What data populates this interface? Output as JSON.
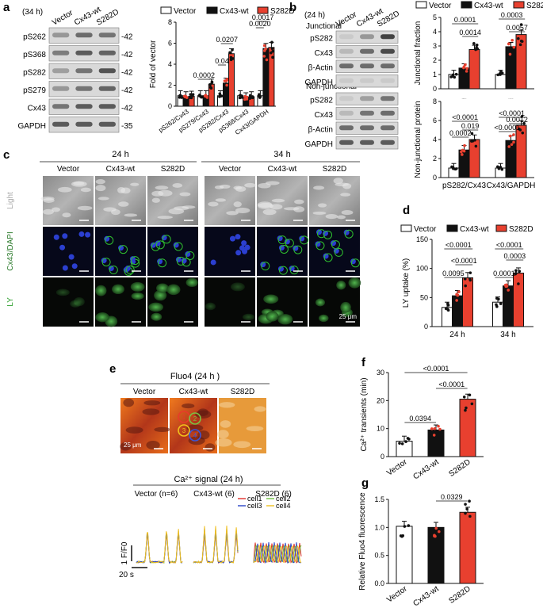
{
  "colors": {
    "vector": "#ffffff",
    "cx43wt": "#111111",
    "s282d": "#e8402f",
    "dot_red": "#e8402f",
    "blot_bg": "#d9d9d9"
  },
  "legend": [
    "Vector",
    "Cx43-wt",
    "S282D"
  ],
  "panel_a": {
    "letter": "a",
    "time": "(34 h)",
    "lanes": [
      "Vector",
      "Cx43-wt",
      "S282D"
    ],
    "bands": [
      "pS262",
      "pS368",
      "pS282",
      "pS279",
      "Cx43",
      "GAPDH"
    ],
    "kda": [
      "42",
      "42",
      "42",
      "42",
      "42",
      "35"
    ]
  },
  "panel_b": {
    "letter": "b",
    "time": "(24 h)",
    "lanes": [
      "Vector",
      "Cx43-wt",
      "S282D"
    ],
    "section1": "Junctional",
    "section2": "Non-junctional",
    "bands1": [
      "pS282",
      "Cx43",
      "β-Actin",
      "GAPDH"
    ],
    "bands2": [
      "pS282",
      "Cx43",
      "β-Actin",
      "GAPDH"
    ]
  },
  "panel_c": {
    "letter": "c",
    "time1": "24 h",
    "time2": "34 h",
    "cols": [
      "Vector",
      "Cx43-wt",
      "S282D"
    ],
    "rows": [
      "Light",
      "Cx43/DAPI",
      "LY"
    ],
    "scale": "25 μm"
  },
  "panel_e": {
    "letter": "e",
    "title": "Fluo4 (24 h )",
    "cols": [
      "Vector",
      "Cx43-wt",
      "S282D"
    ],
    "scale": "25 μm",
    "rois": [
      "1",
      "2",
      "3",
      "4"
    ],
    "signal_title": "Ca²⁺ signal (24 h)",
    "signal_cols": [
      "Vector (n=6)",
      "Cx43-wt (6)",
      "S282D (6)"
    ],
    "cells": [
      "cell1",
      "cell2",
      "cell3",
      "cell4"
    ],
    "ylabel": "1 F/F0",
    "xscale": "20 s"
  },
  "chart_data": [
    {
      "id": "a",
      "type": "bar",
      "title": "",
      "ylabel": "Fold of vector",
      "ylim": [
        0,
        8
      ],
      "yticks": [
        "0",
        "2",
        "4",
        "6",
        "8"
      ],
      "categories": [
        "pS262/Cx43",
        "pS279/Cx43",
        "pS282/Cx43",
        "pS368/Cx43",
        "Cx43/GAPDH"
      ],
      "series": [
        {
          "name": "Vector",
          "values": [
            1.0,
            1.0,
            1.0,
            1.0,
            1.0
          ]
        },
        {
          "name": "Cx43-wt",
          "values": [
            0.9,
            1.0,
            2.2,
            0.8,
            5.5
          ]
        },
        {
          "name": "S282D",
          "values": [
            0.95,
            2.1,
            5.0,
            0.9,
            5.6
          ]
        }
      ],
      "pvalues": [
        "0.0002",
        "0.04",
        "0.0207",
        "0.0020",
        "0.0017"
      ]
    },
    {
      "id": "b_top",
      "type": "bar",
      "title": "",
      "ylabel": "Junctional fraction",
      "ylim": [
        0,
        5
      ],
      "yticks": [
        "0",
        "1",
        "2",
        "3",
        "4",
        "5"
      ],
      "categories": [
        "pS282/Cx43",
        "Cx43/GAPDH"
      ],
      "series": [
        {
          "name": "Vector",
          "values": [
            1.0,
            1.0
          ]
        },
        {
          "name": "Cx43-wt",
          "values": [
            1.45,
            2.95
          ]
        },
        {
          "name": "S282D",
          "values": [
            2.75,
            3.8
          ]
        }
      ],
      "pvalues": [
        "0.0001",
        "0.0014",
        "0.0003",
        "0.0057"
      ]
    },
    {
      "id": "b_bottom",
      "type": "bar",
      "title": "",
      "ylabel": "Non-junctional protein",
      "ylim": [
        0,
        8
      ],
      "yticks": [
        "0",
        "2",
        "4",
        "6",
        "8"
      ],
      "categories": [
        "pS282/Cx43",
        "Cx43/GAPDH"
      ],
      "series": [
        {
          "name": "Vector",
          "values": [
            1.0,
            1.0
          ]
        },
        {
          "name": "Cx43-wt",
          "values": [
            2.9,
            3.9
          ]
        },
        {
          "name": "S282D",
          "values": [
            4.0,
            5.5
          ]
        }
      ],
      "pvalues": [
        "<0.0001",
        "0.019",
        "0.0002",
        "<0.0001",
        "0.0012",
        "<0.0001"
      ]
    },
    {
      "id": "d",
      "type": "bar",
      "title": "",
      "ylabel": "LY uptake (%)",
      "ylim": [
        0,
        150
      ],
      "yticks": [
        "0",
        "50",
        "100",
        "150"
      ],
      "categories": [
        "24 h",
        "34 h"
      ],
      "series": [
        {
          "name": "Vector",
          "values": [
            33,
            42
          ]
        },
        {
          "name": "Cx43-wt",
          "values": [
            53,
            70
          ]
        },
        {
          "name": "S282D",
          "values": [
            84,
            92
          ]
        }
      ],
      "pvalues": [
        "<0.0001",
        "<0.0001",
        "0.0095",
        "<0.0001",
        "0.0003",
        "0.0001"
      ]
    },
    {
      "id": "f",
      "type": "bar",
      "title": "",
      "ylabel": "Ca²⁺ transients (min)",
      "ylim": [
        0,
        30
      ],
      "yticks": [
        "0",
        "10",
        "20",
        "30"
      ],
      "categories": [
        "Vector",
        "Cx43-wt",
        "S282D"
      ],
      "values": [
        5.5,
        9.5,
        20.5
      ],
      "pvalues": [
        "<0.0001",
        "<0.0001",
        "0.0394"
      ]
    },
    {
      "id": "g",
      "type": "bar",
      "title": "",
      "ylabel": "Relative Fluo4 fluorescence",
      "ylim": [
        0,
        1.5
      ],
      "yticks": [
        "0.0",
        "0.5",
        "1.0",
        "1.5"
      ],
      "categories": [
        "Vector",
        "Cx43-wt",
        "S282D"
      ],
      "values": [
        1.02,
        1.0,
        1.27
      ],
      "pvalues": [
        "0.0329"
      ]
    }
  ]
}
